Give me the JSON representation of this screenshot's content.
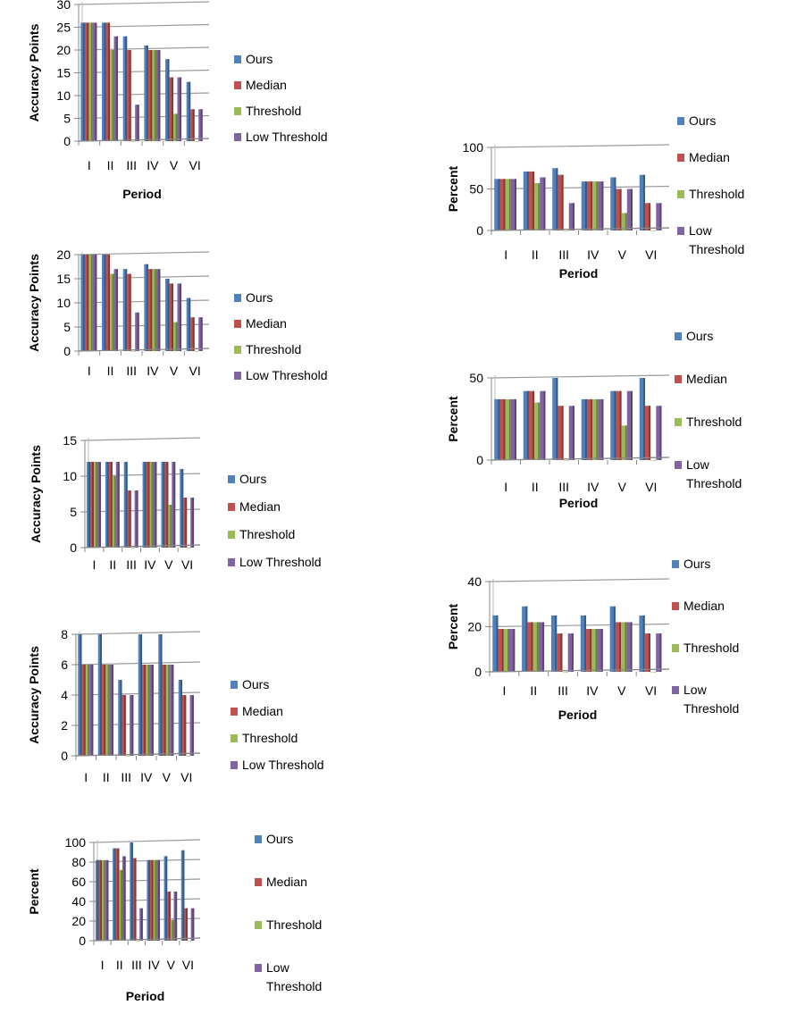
{
  "colors": {
    "Ours": "#4f81bd",
    "Median": "#c0504d",
    "Threshold": "#9bbb59",
    "Low Threshold": "#8064a2"
  },
  "chart_data": [
    {
      "type": "bar",
      "title": "",
      "xlabel": "Period",
      "ylabel": "Accuracy Points",
      "ylim": [
        0,
        30
      ],
      "yticks": [
        0,
        5,
        10,
        15,
        20,
        25,
        30
      ],
      "grid": true,
      "legend": "right",
      "categories": [
        "I",
        "II",
        "III",
        "IV",
        "V",
        "VI"
      ],
      "series": [
        {
          "name": "Ours",
          "values": [
            26,
            26,
            23,
            21,
            18,
            13
          ]
        },
        {
          "name": "Median",
          "values": [
            26,
            26,
            20,
            20,
            14,
            7
          ]
        },
        {
          "name": "Threshold",
          "values": [
            26,
            20,
            0,
            20,
            6,
            0
          ]
        },
        {
          "name": "Low Threshold",
          "values": [
            26,
            23,
            8,
            20,
            14,
            7
          ]
        }
      ]
    },
    {
      "type": "bar",
      "title": "",
      "xlabel": "",
      "ylabel": "Accuracy Points",
      "ylim": [
        0,
        20
      ],
      "yticks": [
        0,
        5,
        10,
        15,
        20
      ],
      "grid": true,
      "legend": "right",
      "categories": [
        "I",
        "II",
        "III",
        "IV",
        "V",
        "VI"
      ],
      "series": [
        {
          "name": "Ours",
          "values": [
            20,
            20,
            17,
            18,
            15,
            11
          ]
        },
        {
          "name": "Median",
          "values": [
            20,
            20,
            16,
            17,
            14,
            7
          ]
        },
        {
          "name": "Threshold",
          "values": [
            20,
            16,
            0,
            17,
            6,
            0
          ]
        },
        {
          "name": "Low Threshold",
          "values": [
            20,
            17,
            8,
            17,
            14,
            7
          ]
        }
      ]
    },
    {
      "type": "bar",
      "title": "",
      "xlabel": "",
      "ylabel": "Accuracy Points",
      "ylim": [
        0,
        15
      ],
      "yticks": [
        0,
        5,
        10,
        15
      ],
      "grid": true,
      "legend": "right",
      "categories": [
        "I",
        "II",
        "III",
        "IV",
        "V",
        "VI"
      ],
      "series": [
        {
          "name": "Ours",
          "values": [
            12,
            12,
            12,
            12,
            12,
            11
          ]
        },
        {
          "name": "Median",
          "values": [
            12,
            12,
            8,
            12,
            12,
            7
          ]
        },
        {
          "name": "Threshold",
          "values": [
            12,
            10,
            0,
            12,
            6,
            0
          ]
        },
        {
          "name": "Low Threshold",
          "values": [
            12,
            12,
            8,
            12,
            12,
            7
          ]
        }
      ]
    },
    {
      "type": "bar",
      "title": "",
      "xlabel": "",
      "ylabel": "Accuracy Points",
      "ylim": [
        0,
        8
      ],
      "yticks": [
        0,
        2,
        4,
        6,
        8
      ],
      "grid": true,
      "legend": "right",
      "categories": [
        "I",
        "II",
        "III",
        "IV",
        "V",
        "VI"
      ],
      "series": [
        {
          "name": "Ours",
          "values": [
            8,
            8,
            5,
            8,
            8,
            5
          ]
        },
        {
          "name": "Median",
          "values": [
            6,
            6,
            4,
            6,
            6,
            4
          ]
        },
        {
          "name": "Threshold",
          "values": [
            6,
            6,
            0,
            6,
            6,
            0
          ]
        },
        {
          "name": "Low Threshold",
          "values": [
            6,
            6,
            4,
            6,
            6,
            4
          ]
        }
      ]
    },
    {
      "type": "bar",
      "title": "",
      "xlabel": "Period",
      "ylabel": "Percent",
      "ylim": [
        0,
        100
      ],
      "yticks": [
        0,
        20,
        40,
        60,
        80,
        100
      ],
      "grid": true,
      "legend": "right",
      "categories": [
        "I",
        "II",
        "III",
        "IV",
        "V",
        "VI"
      ],
      "series": [
        {
          "name": "Ours",
          "values": [
            82,
            94,
            100,
            82,
            86,
            92
          ]
        },
        {
          "name": "Median",
          "values": [
            82,
            94,
            84,
            82,
            50,
            33
          ]
        },
        {
          "name": "Threshold",
          "values": [
            82,
            72,
            0,
            82,
            21,
            0
          ]
        },
        {
          "name": "Low Threshold",
          "values": [
            82,
            86,
            33,
            82,
            50,
            33
          ]
        }
      ]
    },
    {
      "type": "bar",
      "title": "",
      "xlabel": "Period",
      "ylabel": "Percent",
      "ylim": [
        0,
        100
      ],
      "yticks": [
        0,
        50,
        100
      ],
      "grid": true,
      "legend": "right",
      "categories": [
        "I",
        "II",
        "III",
        "IV",
        "V",
        "VI"
      ],
      "series": [
        {
          "name": "Ours",
          "values": [
            62,
            71,
            75,
            59,
            64,
            67
          ]
        },
        {
          "name": "Median",
          "values": [
            62,
            71,
            67,
            59,
            50,
            33
          ]
        },
        {
          "name": "Threshold",
          "values": [
            62,
            57,
            0,
            59,
            21,
            0
          ]
        },
        {
          "name": "Low Threshold",
          "values": [
            62,
            64,
            33,
            59,
            50,
            33
          ]
        }
      ]
    },
    {
      "type": "bar",
      "title": "",
      "xlabel": "Period",
      "ylabel": "Percent",
      "ylim": [
        0,
        50
      ],
      "yticks": [
        0,
        50
      ],
      "grid": true,
      "legend": "right",
      "categories": [
        "I",
        "II",
        "III",
        "IV",
        "V",
        "VI"
      ],
      "series": [
        {
          "name": "Ours",
          "values": [
            37,
            42,
            50,
            37,
            42,
            50
          ]
        },
        {
          "name": "Median",
          "values": [
            37,
            42,
            33,
            37,
            42,
            33
          ]
        },
        {
          "name": "Threshold",
          "values": [
            37,
            35,
            0,
            37,
            21,
            0
          ]
        },
        {
          "name": "Low Threshold",
          "values": [
            37,
            42,
            33,
            37,
            42,
            33
          ]
        }
      ]
    },
    {
      "type": "bar",
      "title": "",
      "xlabel": "Period",
      "ylabel": "Percent",
      "ylim": [
        0,
        40
      ],
      "yticks": [
        0,
        20,
        40
      ],
      "grid": true,
      "legend": "right",
      "categories": [
        "I",
        "II",
        "III",
        "IV",
        "V",
        "VI"
      ],
      "series": [
        {
          "name": "Ours",
          "values": [
            25,
            29,
            25,
            25,
            29,
            25
          ]
        },
        {
          "name": "Median",
          "values": [
            19,
            22,
            17,
            19,
            22,
            17
          ]
        },
        {
          "name": "Threshold",
          "values": [
            19,
            22,
            0,
            19,
            22,
            0
          ]
        },
        {
          "name": "Low Threshold",
          "values": [
            19,
            22,
            17,
            19,
            22,
            17
          ]
        }
      ]
    }
  ]
}
